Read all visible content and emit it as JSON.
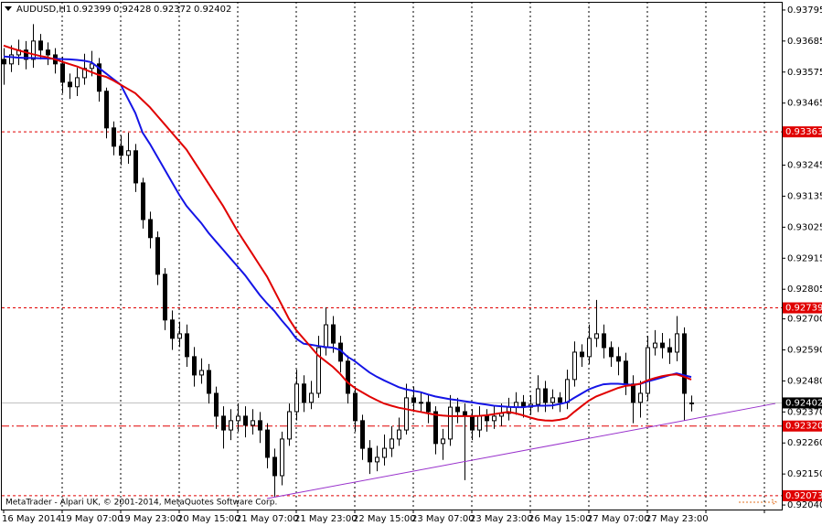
{
  "chart_data": {
    "type": "candlestick",
    "title": "AUDUSD,H1",
    "footer": "MetaTrader - Alpari UK, © 2001-2014, MetaQuotes Software Corp.",
    "categories": [
      "16 May 2014",
      null,
      null,
      null,
      null,
      null,
      null,
      null,
      "19 May 07:00",
      null,
      null,
      null,
      null,
      null,
      null,
      null,
      "19 May 23:00",
      null,
      null,
      null,
      null,
      null,
      null,
      null,
      "20 May 15:00",
      null,
      null,
      null,
      null,
      null,
      null,
      null,
      "21 May 07:00",
      null,
      null,
      null,
      null,
      null,
      null,
      null,
      "21 May 23:00",
      null,
      null,
      null,
      null,
      null,
      null,
      null,
      "22 May 15:00",
      null,
      null,
      null,
      null,
      null,
      null,
      null,
      "23 May 07:00",
      null,
      null,
      null,
      null,
      null,
      null,
      null,
      "23 May 23:00",
      null,
      null,
      null,
      null,
      null,
      null,
      null,
      "26 May 15:00",
      null,
      null,
      null,
      null,
      null,
      null,
      null,
      "27 May 07:00",
      null,
      null,
      null,
      null,
      null,
      null,
      null,
      "27 May 23:00",
      null,
      null,
      null,
      null,
      null,
      null,
      null,
      null,
      null,
      null,
      null,
      null,
      null,
      null,
      null,
      null
    ],
    "open": [
      0.9362,
      0.93604,
      0.93636,
      0.93653,
      0.9362,
      0.93685,
      0.93653,
      0.93636,
      0.93604,
      0.93539,
      0.93523,
      0.93555,
      0.93588,
      0.93604,
      0.93507,
      0.93377,
      0.93312,
      0.9328,
      0.93296,
      0.93182,
      0.93052,
      0.92988,
      0.92858,
      0.92696,
      0.92631,
      0.92647,
      0.92566,
      0.92501,
      0.92517,
      0.92436,
      0.92355,
      0.92306,
      0.92339,
      0.92355,
      0.92323,
      0.92339,
      0.92306,
      0.92209,
      0.92144,
      0.92274,
      0.92371,
      0.92469,
      0.92404,
      0.92436,
      0.92598,
      0.92679,
      0.92614,
      0.9255,
      0.92436,
      0.92339,
      0.92241,
      0.92193,
      0.92209,
      0.92241,
      0.92274,
      0.92306,
      0.9242,
      0.92404,
      0.92404,
      0.92371,
      0.92258,
      0.92274,
      0.92387,
      0.92371,
      0.92355,
      0.92306,
      0.92355,
      0.92339,
      0.92355,
      0.92365,
      0.92387,
      0.92404,
      0.92387,
      0.92397,
      0.92452,
      0.92404,
      0.9242,
      0.92404,
      0.92485,
      0.92582,
      0.92566,
      0.92631,
      0.92647,
      0.92598,
      0.92566,
      0.9255,
      0.92469,
      0.92404,
      0.92436,
      0.92598,
      0.92614,
      0.92598,
      0.92582,
      0.92647,
      0.92399,
      null,
      null,
      null,
      null,
      null,
      null,
      null,
      null,
      null,
      null
    ],
    "high": [
      0.9366,
      0.9367,
      0.9369,
      0.93685,
      0.93745,
      0.9371,
      0.9368,
      0.9366,
      0.9363,
      0.9357,
      0.9359,
      0.9364,
      0.9365,
      0.93625,
      0.9352,
      0.934,
      0.9335,
      0.9336,
      0.9332,
      0.932,
      0.9308,
      0.9301,
      0.9288,
      0.9273,
      0.9269,
      0.9268,
      0.926,
      0.9256,
      0.9254,
      0.9246,
      0.9239,
      0.9238,
      0.924,
      0.9239,
      0.9238,
      0.9237,
      0.9233,
      0.9224,
      0.923,
      0.924,
      0.9252,
      0.925,
      0.9248,
      0.9264,
      0.92741,
      0.9271,
      0.9264,
      0.9257,
      0.9246,
      0.9236,
      0.9227,
      0.9225,
      0.9229,
      0.9232,
      0.9235,
      0.9247,
      0.9246,
      0.9244,
      0.9243,
      0.9239,
      0.9231,
      0.9243,
      0.9242,
      0.924,
      0.9238,
      0.9239,
      0.9238,
      0.9239,
      0.924,
      0.9242,
      0.9244,
      0.9243,
      0.9243,
      0.925,
      0.9248,
      0.9245,
      0.9244,
      0.9252,
      0.9262,
      0.9261,
      0.9268,
      0.92767,
      0.9268,
      0.9262,
      0.926,
      0.9258,
      0.925,
      0.9248,
      0.9264,
      0.9266,
      0.9265,
      0.9263,
      0.9271,
      0.9267,
      0.92428,
      null,
      null,
      null,
      null,
      null,
      null,
      null,
      null,
      null,
      null
    ],
    "low": [
      0.9353,
      0.93575,
      0.936,
      0.93585,
      0.9359,
      0.9362,
      0.936,
      0.9357,
      0.935,
      0.9348,
      0.9349,
      0.9353,
      0.9356,
      0.9347,
      0.9334,
      0.9328,
      0.93245,
      0.9325,
      0.9315,
      0.9302,
      0.9295,
      0.9282,
      0.9266,
      0.9259,
      0.926,
      0.9253,
      0.9246,
      0.9247,
      0.924,
      0.9231,
      0.9224,
      0.9227,
      0.923,
      0.9228,
      0.9229,
      0.9226,
      0.9217,
      0.9207,
      0.9211,
      0.9225,
      0.9234,
      0.9237,
      0.9238,
      0.9242,
      0.9257,
      0.9258,
      0.9251,
      0.924,
      0.923,
      0.922,
      0.9215,
      0.9216,
      0.9218,
      0.9221,
      0.9225,
      0.9229,
      0.9237,
      0.9237,
      0.9233,
      0.9222,
      0.922,
      0.9225,
      0.9233,
      0.92128,
      0.9227,
      0.9228,
      0.923,
      0.9231,
      0.9232,
      0.9234,
      0.9236,
      0.9235,
      0.9236,
      0.9237,
      0.9237,
      0.9238,
      0.9237,
      0.9238,
      0.9246,
      0.9253,
      0.9254,
      0.926,
      0.9256,
      0.9253,
      0.925,
      0.9243,
      0.9233,
      0.9235,
      0.9241,
      0.9257,
      0.9256,
      0.9254,
      0.9255,
      0.9234,
      0.92372,
      null,
      null,
      null,
      null,
      null,
      null,
      null,
      null,
      null,
      null
    ],
    "close": [
      0.93604,
      0.93636,
      0.93653,
      0.9362,
      0.93685,
      0.93653,
      0.93636,
      0.93604,
      0.93539,
      0.93523,
      0.93555,
      0.93588,
      0.93604,
      0.93507,
      0.93377,
      0.93312,
      0.9328,
      0.93296,
      0.93182,
      0.93052,
      0.92988,
      0.92858,
      0.92696,
      0.92631,
      0.92647,
      0.92566,
      0.92501,
      0.92517,
      0.92436,
      0.92355,
      0.92306,
      0.92339,
      0.92355,
      0.92323,
      0.92339,
      0.92306,
      0.92209,
      0.92144,
      0.92274,
      0.92371,
      0.92469,
      0.92404,
      0.92436,
      0.92598,
      0.92679,
      0.92614,
      0.9255,
      0.92436,
      0.92339,
      0.92241,
      0.92193,
      0.92209,
      0.92241,
      0.92274,
      0.92306,
      0.9242,
      0.92404,
      0.92404,
      0.92371,
      0.92258,
      0.92274,
      0.92387,
      0.92371,
      0.92355,
      0.92306,
      0.92355,
      0.92339,
      0.92355,
      0.92365,
      0.92387,
      0.92404,
      0.92387,
      0.92397,
      0.92452,
      0.92404,
      0.9242,
      0.92404,
      0.92485,
      0.92582,
      0.92566,
      0.92631,
      0.92647,
      0.92598,
      0.92566,
      0.9255,
      0.92469,
      0.92404,
      0.92436,
      0.92598,
      0.92614,
      0.92598,
      0.92582,
      0.92647,
      0.92436,
      0.92402,
      null,
      null,
      null,
      null,
      null,
      null,
      null,
      null,
      null,
      null
    ],
    "series": [
      {
        "color": "#1414e6",
        "values": [
          0.9363,
          0.93628,
          0.93626,
          0.93625,
          0.93625,
          0.93624,
          0.93623,
          0.93622,
          0.93621,
          0.9362,
          0.93618,
          0.93615,
          0.9361,
          0.9359,
          0.9357,
          0.9355,
          0.9353,
          0.9348,
          0.9343,
          0.9336,
          0.9332,
          0.93275,
          0.9323,
          0.93185,
          0.9314,
          0.931,
          0.9307,
          0.9304,
          0.93005,
          0.92975,
          0.92945,
          0.92915,
          0.92885,
          0.92855,
          0.9282,
          0.92785,
          0.92755,
          0.92728,
          0.92695,
          0.92665,
          0.9263,
          0.92612,
          0.92608,
          0.92604,
          0.926,
          0.92598,
          0.9259,
          0.92566,
          0.9255,
          0.9253,
          0.9251,
          0.92495,
          0.92482,
          0.9247,
          0.92458,
          0.9245,
          0.92445,
          0.9244,
          0.92432,
          0.92425,
          0.9242,
          0.92415,
          0.92412,
          0.92408,
          0.92404,
          0.924,
          0.92396,
          0.92392,
          0.9239,
          0.92388,
          0.92387,
          0.92387,
          0.9239,
          0.92392,
          0.92392,
          0.92393,
          0.92398,
          0.92404,
          0.9242,
          0.92435,
          0.9245,
          0.9246,
          0.92468,
          0.9247,
          0.9247,
          0.92468,
          0.92466,
          0.92469,
          0.92478,
          0.92485,
          0.92492,
          0.925,
          0.92507,
          0.925,
          0.92494,
          null,
          null,
          null,
          null,
          null,
          null,
          null,
          null,
          null,
          null
        ]
      },
      {
        "color": "#e00000",
        "values": [
          0.93669,
          0.9366,
          0.93652,
          0.93645,
          0.93638,
          0.93632,
          0.93627,
          0.9362,
          0.93612,
          0.93603,
          0.93595,
          0.93585,
          0.93575,
          0.93565,
          0.93558,
          0.93545,
          0.9353,
          0.93515,
          0.935,
          0.93475,
          0.9345,
          0.9342,
          0.9339,
          0.9336,
          0.9333,
          0.933,
          0.9326,
          0.9322,
          0.9318,
          0.9314,
          0.931,
          0.93055,
          0.9301,
          0.9297,
          0.9293,
          0.9289,
          0.9285,
          0.928,
          0.9275,
          0.927,
          0.9266,
          0.9263,
          0.926,
          0.9257,
          0.9255,
          0.9253,
          0.92505,
          0.92475,
          0.92455,
          0.9244,
          0.92425,
          0.92412,
          0.924,
          0.92392,
          0.92385,
          0.9238,
          0.92375,
          0.9237,
          0.92365,
          0.9236,
          0.92357,
          0.92355,
          0.92355,
          0.92355,
          0.92355,
          0.92356,
          0.92358,
          0.92362,
          0.92366,
          0.9237,
          0.92365,
          0.92358,
          0.9235,
          0.92343,
          0.9234,
          0.92339,
          0.92342,
          0.92348,
          0.9237,
          0.9239,
          0.9241,
          0.92425,
          0.92435,
          0.92445,
          0.92455,
          0.92462,
          0.92465,
          0.9247,
          0.92482,
          0.9249,
          0.92497,
          0.92501,
          0.92503,
          0.92495,
          0.92485,
          null,
          null,
          null,
          null,
          null,
          null,
          null,
          null,
          null,
          null
        ]
      }
    ],
    "bull_color": "#ffffff",
    "bear_color": "#000000",
    "ylim": [
      0.92024,
      0.93824
    ],
    "yticks": [
      0.93795,
      0.93685,
      0.93575,
      0.93465,
      0.93245,
      0.93135,
      0.93025,
      0.92915,
      0.92805,
      {
        "value": 0.927,
        "label": "0.92700"
      },
      {
        "value": 0.9259,
        "label": "0.92590"
      },
      {
        "value": 0.9248,
        "label": "0.92480"
      },
      {
        "value": 0.9237,
        "label": "0.92370"
      },
      {
        "value": 0.9226,
        "label": "0.92260"
      },
      {
        "value": 0.9215,
        "label": "0.92150"
      },
      {
        "value": 0.9204,
        "label": "0.92040"
      }
    ],
    "grid": "x",
    "levels": [
      0.93363,
      0.92739,
      {
        "value": 0.9232,
        "label": "0.92320"
      },
      0.92073
    ],
    "level_dash": [
      "dash",
      "dash",
      "dashdot",
      "dash"
    ],
    "level_color": "#e00000",
    "current_price": 0.92402,
    "trendline": {
      "color": "#9932cc",
      "x": [
        36,
        105.5
      ],
      "y": [
        0.92063,
        0.924
      ]
    }
  }
}
